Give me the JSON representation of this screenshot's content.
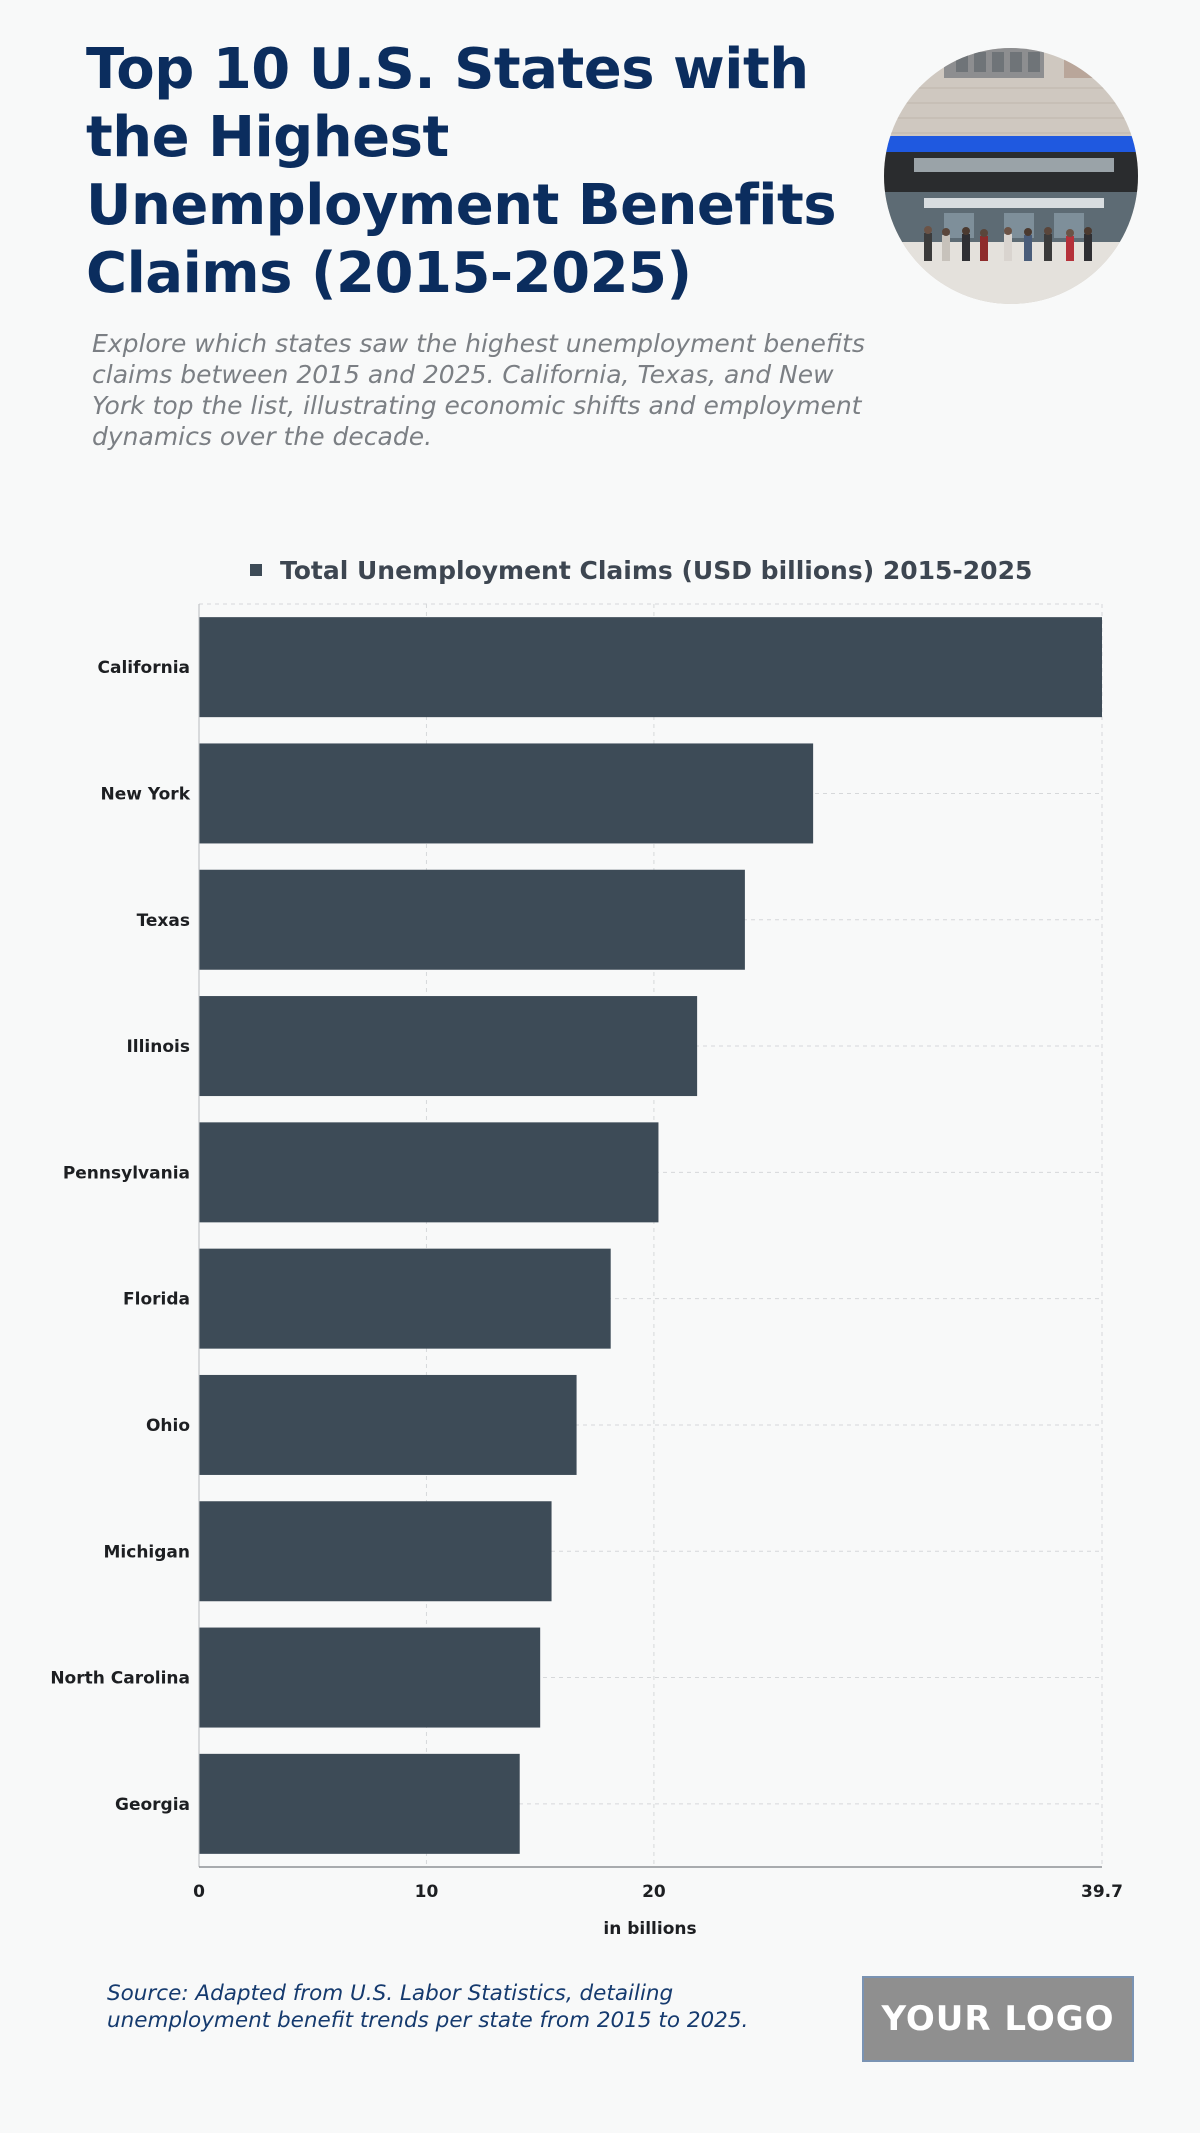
{
  "header": {
    "title": "Top 10 U.S. States with the Highest Unemployment Benefits Claims (2015-2025)",
    "subtitle": "Explore which states saw the highest unemployment benefits claims between 2015 and 2025. California, Texas, and New York top the list, illustrating economic shifts and employment dynamics over the decade."
  },
  "footer": {
    "source": "Source: Adapted from U.S. Labor Statistics, detailing unemployment benefit trends per state from 2015 to 2025.",
    "logo": "YOUR LOGO"
  },
  "colors": {
    "bar": "#3d4b57",
    "title": "#0b2d5e",
    "background": "#f8f9f9"
  },
  "chart_data": {
    "type": "bar",
    "orientation": "horizontal",
    "categories": [
      "California",
      "New York",
      "Texas",
      "Illinois",
      "Pennsylvania",
      "Florida",
      "Ohio",
      "Michigan",
      "North Carolina",
      "Georgia"
    ],
    "series": [
      {
        "name": "Total Unemployment Claims (USD billions) 2015-2025",
        "values": [
          39.7,
          27.0,
          24.0,
          21.9,
          20.2,
          18.1,
          16.6,
          15.5,
          15.0,
          14.1
        ]
      }
    ],
    "xlabel": "in billions",
    "ylabel": "",
    "xlim": [
      0,
      39.7
    ],
    "xticks": [
      "0",
      "10",
      "20",
      "39.7"
    ],
    "xtick_values": [
      0,
      10,
      20,
      39.7
    ],
    "grid": true,
    "legend": "top"
  }
}
